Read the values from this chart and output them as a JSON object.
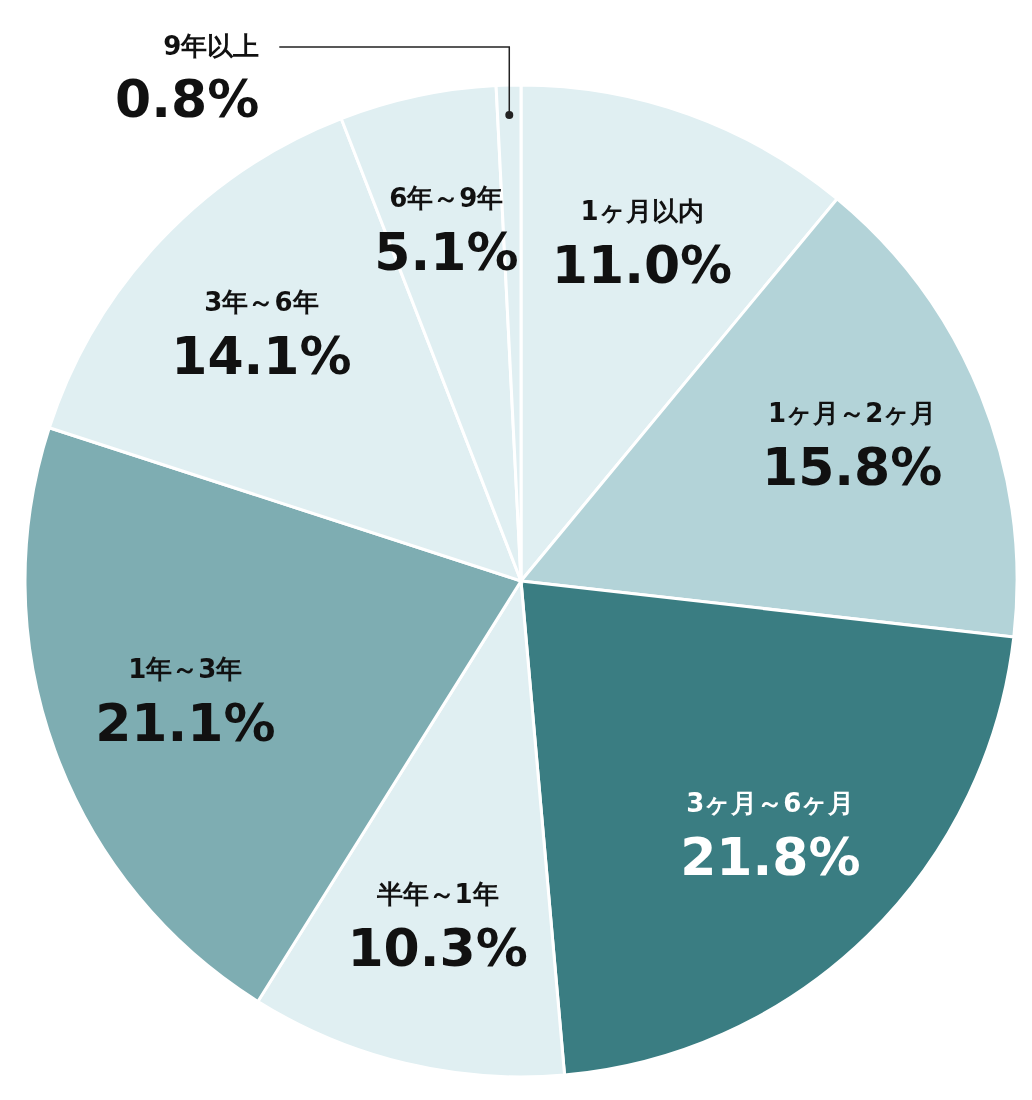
{
  "chart_data": {
    "type": "pie",
    "categories": [
      "1ヶ月以内",
      "1ヶ月～2ヶ月",
      "3ヶ月～6ヶ月",
      "半年～1年",
      "1年～3年",
      "3年～6年",
      "6年～9年",
      "9年以上"
    ],
    "values": [
      11.0,
      15.8,
      21.8,
      10.3,
      21.1,
      14.1,
      5.1,
      0.8
    ],
    "value_labels": [
      "11.0%",
      "15.8%",
      "21.8%",
      "10.3%",
      "21.1%",
      "14.1%",
      "5.1%",
      "0.8%"
    ],
    "colors": [
      "#e0eff2",
      "#b3d3d8",
      "#3a7d82",
      "#e0eff2",
      "#7eadb2",
      "#e0eff2",
      "#e0eff2",
      "#e0eff2"
    ],
    "legend": false
  }
}
